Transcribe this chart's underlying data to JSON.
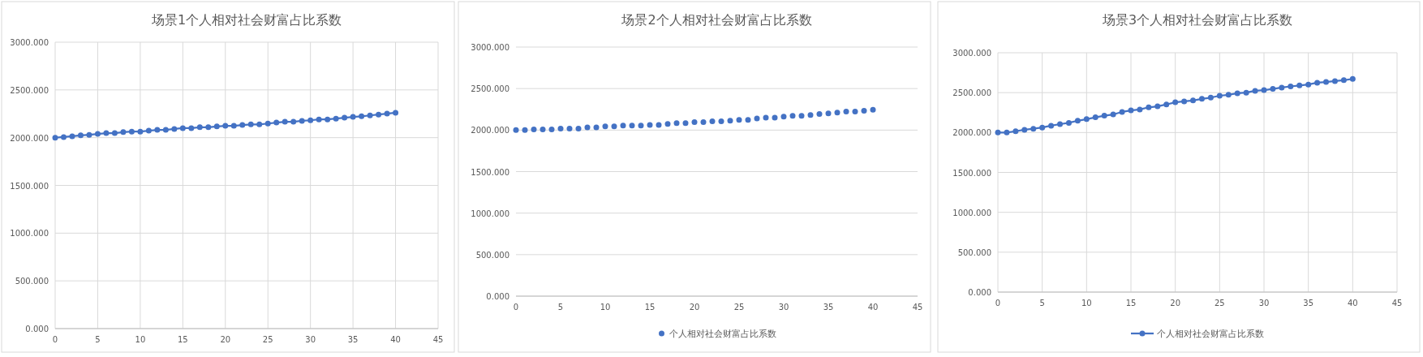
{
  "chart_data": [
    {
      "type": "line",
      "title": "场景1个人相对社会财富占比系数",
      "x": [
        0,
        1,
        2,
        3,
        4,
        5,
        6,
        7,
        8,
        9,
        10,
        11,
        12,
        13,
        14,
        15,
        16,
        17,
        18,
        19,
        20,
        21,
        22,
        23,
        24,
        25,
        26,
        27,
        28,
        29,
        30,
        31,
        32,
        33,
        34,
        35,
        36,
        37,
        38,
        39,
        40
      ],
      "series": [
        {
          "color": "#4472c4",
          "values": [
            2000,
            2006,
            2015,
            2024,
            2030,
            2039,
            2048,
            2048,
            2058,
            2064,
            2064,
            2073,
            2082,
            2082,
            2091,
            2100,
            2100,
            2109,
            2109,
            2118,
            2124,
            2124,
            2133,
            2139,
            2139,
            2148,
            2158,
            2167,
            2167,
            2176,
            2182,
            2191,
            2191,
            2200,
            2209,
            2218,
            2224,
            2233,
            2242,
            2252,
            2261
          ]
        }
      ],
      "xlim": [
        0,
        45
      ],
      "xticks": [
        0,
        5,
        10,
        15,
        20,
        25,
        30,
        35,
        40,
        45
      ],
      "ylim": [
        0,
        3000
      ],
      "yticks": [
        {
          "value": 0,
          "label": "0.000"
        },
        {
          "value": 500,
          "label": "500.000"
        },
        {
          "value": 1000,
          "label": "1000.000"
        },
        {
          "value": 1500,
          "label": "1500.000"
        },
        {
          "value": 2000,
          "label": "2000.000"
        },
        {
          "value": 2500,
          "label": "2500.000"
        },
        {
          "value": 3000,
          "label": "3000.000"
        }
      ],
      "grid": true,
      "marker": "circle",
      "legend": false
    },
    {
      "type": "scatter",
      "title": "场景2个人相对社会财富占比系数",
      "x": [
        0,
        1,
        2,
        3,
        4,
        5,
        6,
        7,
        8,
        9,
        10,
        11,
        12,
        13,
        14,
        15,
        16,
        17,
        18,
        19,
        20,
        21,
        22,
        23,
        24,
        25,
        26,
        27,
        28,
        29,
        30,
        31,
        32,
        33,
        34,
        35,
        36,
        37,
        38,
        39,
        40
      ],
      "series": [
        {
          "name": "个人相对社会财富占比系数",
          "color": "#4472c4",
          "values": [
            2000,
            2000,
            2007,
            2007,
            2007,
            2018,
            2018,
            2018,
            2033,
            2033,
            2044,
            2044,
            2055,
            2055,
            2055,
            2062,
            2062,
            2073,
            2084,
            2084,
            2095,
            2095,
            2106,
            2106,
            2113,
            2124,
            2124,
            2139,
            2150,
            2150,
            2161,
            2172,
            2172,
            2182,
            2193,
            2200,
            2212,
            2223,
            2223,
            2234,
            2245
          ]
        }
      ],
      "xlim": [
        0,
        45
      ],
      "xticks": [
        0,
        5,
        10,
        15,
        20,
        25,
        30,
        35,
        40,
        45
      ],
      "ylim": [
        0,
        3000
      ],
      "yticks": [
        {
          "value": 0,
          "label": "0.000"
        },
        {
          "value": 500,
          "label": "500.000"
        },
        {
          "value": 1000,
          "label": "1000.000"
        },
        {
          "value": 1500,
          "label": "1500.000"
        },
        {
          "value": 2000,
          "label": "2000.000"
        },
        {
          "value": 2500,
          "label": "2500.000"
        },
        {
          "value": 3000,
          "label": "3000.000"
        }
      ],
      "grid": "y",
      "marker": "circle",
      "legend": "bottom"
    },
    {
      "type": "line",
      "title": "场景3个人相对社会财富占比系数",
      "x": [
        0,
        1,
        2,
        3,
        4,
        5,
        6,
        7,
        8,
        9,
        10,
        11,
        12,
        13,
        14,
        15,
        16,
        17,
        18,
        19,
        20,
        21,
        22,
        23,
        24,
        25,
        26,
        27,
        28,
        29,
        30,
        31,
        32,
        33,
        34,
        35,
        36,
        37,
        38,
        39,
        40
      ],
      "series": [
        {
          "name": "个人相对社会财富占比系数",
          "color": "#4472c4",
          "values": [
            2000,
            2000,
            2016,
            2035,
            2047,
            2063,
            2086,
            2105,
            2121,
            2148,
            2168,
            2191,
            2211,
            2227,
            2258,
            2277,
            2289,
            2316,
            2328,
            2352,
            2379,
            2391,
            2402,
            2422,
            2438,
            2461,
            2473,
            2492,
            2500,
            2523,
            2531,
            2547,
            2563,
            2578,
            2590,
            2602,
            2625,
            2633,
            2645,
            2656,
            2672
          ]
        }
      ],
      "xlim": [
        0,
        45
      ],
      "xticks": [
        0,
        5,
        10,
        15,
        20,
        25,
        30,
        35,
        40,
        45
      ],
      "ylim": [
        0,
        3000
      ],
      "yticks": [
        {
          "value": 0,
          "label": "0.000"
        },
        {
          "value": 500,
          "label": "500.000"
        },
        {
          "value": 1000,
          "label": "1000.000"
        },
        {
          "value": 1500,
          "label": "1500.000"
        },
        {
          "value": 2000,
          "label": "2000.000"
        },
        {
          "value": 2500,
          "label": "2500.000"
        },
        {
          "value": 3000,
          "label": "3000.000"
        }
      ],
      "grid": true,
      "marker": "circle",
      "legend": "bottom"
    }
  ]
}
